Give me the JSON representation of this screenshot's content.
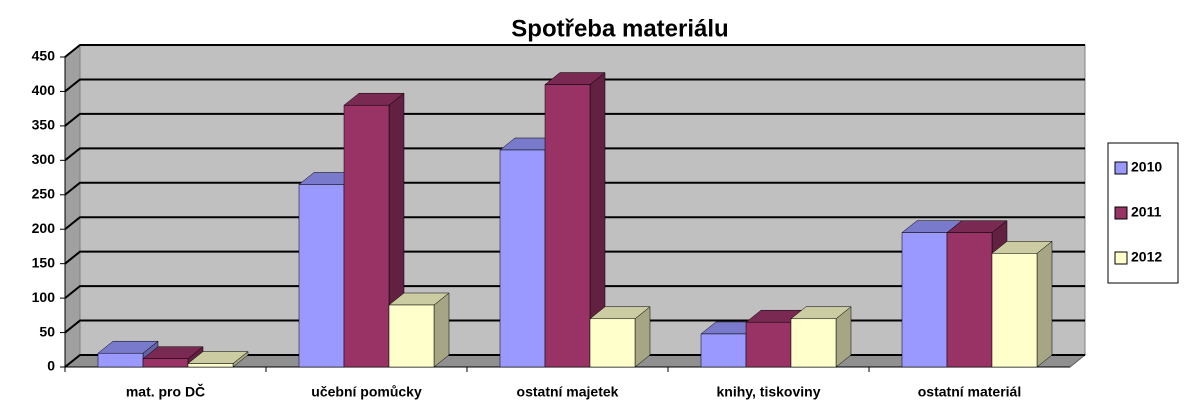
{
  "chart_data": {
    "type": "bar3d",
    "title": "Spotřeba materiálu",
    "categories": [
      "mat. pro DČ",
      "učební pomůcky",
      "ostatní majetek",
      "knihy, tiskoviny",
      "ostatní materiál"
    ],
    "series": [
      {
        "name": "2010",
        "color": "#9999ff",
        "values": [
          20,
          265,
          315,
          48,
          195
        ]
      },
      {
        "name": "2011",
        "color": "#993366",
        "values": [
          12,
          380,
          410,
          65,
          195
        ]
      },
      {
        "name": "2012",
        "color": "#ffffcc",
        "values": [
          5,
          90,
          70,
          70,
          165
        ]
      }
    ],
    "ylim": [
      0,
      450
    ],
    "yticks": [
      0,
      50,
      100,
      150,
      200,
      250,
      300,
      350,
      400,
      450
    ],
    "grid": true
  }
}
